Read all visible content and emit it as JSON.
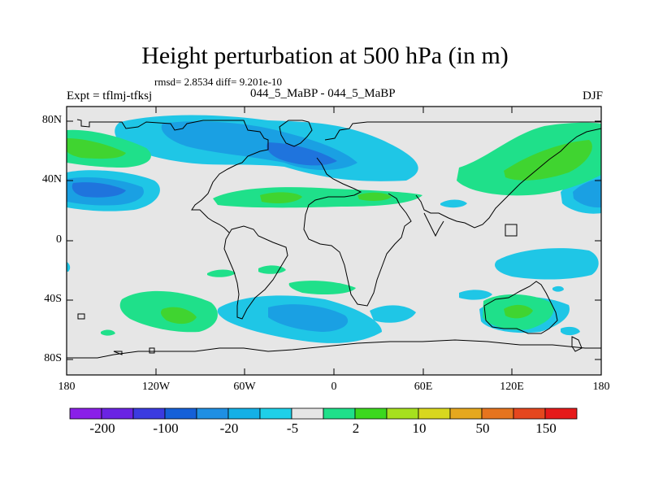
{
  "title": "Height perturbation at 500 hPa (in m)",
  "stats": "rmsd= 2.8534 diff= 9.201e-10",
  "experiment": "Expt = tflmj-tfksj",
  "subtitle": "044_5_MaBP - 044_5_MaBP",
  "season": "DJF",
  "map": {
    "lat_ticks": [
      "80N",
      "40N",
      "0",
      "40S",
      "80S"
    ],
    "lon_ticks": [
      "180",
      "120W",
      "60W",
      "0",
      "60E",
      "120E",
      "180"
    ],
    "background_color": "#e6e6e6"
  },
  "colorbar": {
    "colors": [
      "#8a1fe8",
      "#6a23e3",
      "#3b3be0",
      "#1560d8",
      "#1f8fe3",
      "#14b0e6",
      "#1fd0e8",
      "#e6e6e6",
      "#1fe08a",
      "#3cd81e",
      "#a6e01e",
      "#d8d71e",
      "#e6a81e",
      "#e6741e",
      "#e5471e",
      "#e61a1a"
    ],
    "labels": [
      "-200",
      "-100",
      "-20",
      "-5",
      "2",
      "10",
      "50",
      "150"
    ]
  },
  "blob_colors": {
    "neg_light": "#1fc6e6",
    "neg_mid": "#1aa0e3",
    "neg_dark": "#1f74dd",
    "pos_light": "#1fe08a",
    "pos_mid": "#40d430"
  }
}
